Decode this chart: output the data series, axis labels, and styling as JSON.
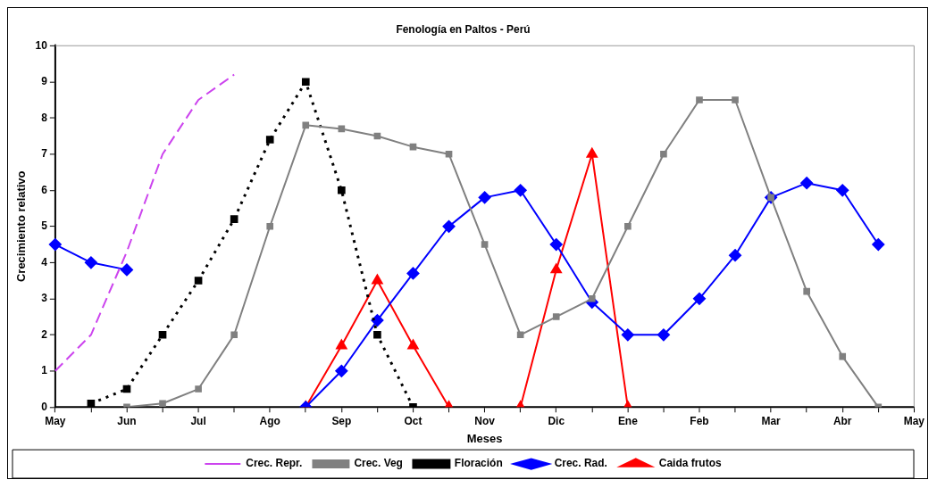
{
  "chart_data": {
    "type": "line",
    "title": "Fenología en Paltos - Perú",
    "xlabel": "Meses",
    "ylabel": "Crecimiento relativo",
    "categories": [
      "May",
      null,
      "Jun",
      null,
      "Jul",
      null,
      "Ago",
      null,
      "Sep",
      null,
      "Oct",
      null,
      "Nov",
      null,
      "Dic",
      null,
      "Ene",
      null,
      "Feb",
      null,
      "Mar",
      null,
      "Abr",
      null,
      "May"
    ],
    "ylim": [
      0,
      10
    ],
    "yticks": [
      0,
      1,
      2,
      3,
      4,
      5,
      6,
      7,
      8,
      9,
      10
    ],
    "grid": false,
    "legend": "bottom",
    "series": [
      {
        "name": "Crec. Repr.",
        "color": "#cc44ee",
        "marker": "none",
        "line_style": "dashed",
        "values": [
          1.0,
          2.0,
          4.3,
          7.0,
          8.5,
          9.2,
          null,
          null,
          null,
          null,
          null,
          null,
          null,
          null,
          null,
          null,
          null,
          null,
          null,
          null,
          null,
          null,
          null,
          null,
          null
        ]
      },
      {
        "name": "Crec. Veg",
        "color": "#808080",
        "marker": "square",
        "line_style": "solid",
        "values": [
          null,
          null,
          0,
          0.1,
          0.5,
          2,
          5,
          7.8,
          7.7,
          7.5,
          7.2,
          7.0,
          4.5,
          2,
          2.5,
          3,
          5,
          7,
          8.5,
          8.5,
          5.8,
          3.2,
          1.4,
          0,
          null
        ]
      },
      {
        "name": "Floración",
        "color": "#000000",
        "marker": "square",
        "line_style": "dotted",
        "values": [
          null,
          0.1,
          0.5,
          2,
          3.5,
          5.2,
          7.4,
          9.0,
          6,
          2,
          0,
          null,
          null,
          null,
          null,
          null,
          null,
          null,
          null,
          null,
          null,
          null,
          null,
          null,
          null
        ]
      },
      {
        "name": "Crec. Rad.",
        "color": "#0000ff",
        "marker": "diamond",
        "line_style": "solid",
        "values": [
          4.5,
          4.0,
          3.8,
          null,
          null,
          null,
          null,
          0,
          1,
          2.4,
          3.7,
          5.0,
          5.8,
          6.0,
          4.5,
          2.9,
          2.0,
          2.0,
          3.0,
          4.2,
          5.8,
          6.2,
          6.0,
          4.5,
          null
        ]
      },
      {
        "name": "Caida frutos",
        "color": "#ff0000",
        "marker": "triangle",
        "line_style": "solid",
        "values": [
          null,
          null,
          null,
          null,
          null,
          null,
          null,
          0,
          1.7,
          3.5,
          1.7,
          0,
          null,
          0,
          3.8,
          7.0,
          0,
          null,
          null,
          null,
          null,
          null,
          null,
          null,
          null
        ]
      }
    ]
  }
}
